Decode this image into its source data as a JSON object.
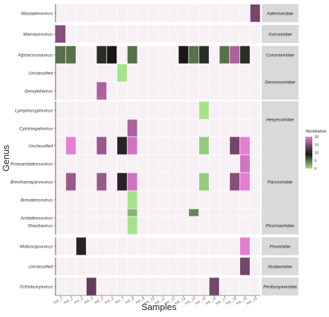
{
  "chart_data": {
    "type": "heatmap",
    "title": "",
    "xlabel": "Samples",
    "ylabel": "Genus",
    "samples": [
      "Ind._1",
      "Ind._2",
      "Ind._3",
      "Ind._4",
      "Ind._5",
      "Ind._6",
      "Ind._7",
      "Ind._8",
      "Ind._9",
      "Ind._10",
      "Ind._11",
      "Ind._12",
      "Ind._13",
      "Ind._14",
      "Ind._15",
      "Ind._16",
      "Ind._17",
      "Ind._18",
      "Ind._19",
      "Ind._20"
    ],
    "facets": [
      {
        "family": "Adenoviridae",
        "genera": [
          "Mastadenovirus"
        ]
      },
      {
        "family": "Astroviridae",
        "genera": [
          "Mamastrovirus"
        ]
      },
      {
        "family": "Coronaviridae",
        "genera": [
          "Alphacoronavirus"
        ]
      },
      {
        "family": "Genomoviridae",
        "genera": [
          "Unclassified",
          "Gemykibivirus"
        ]
      },
      {
        "family": "Herpesviridae",
        "genera": [
          "Lymphocryptovirus",
          "Cytomegalovirus"
        ]
      },
      {
        "family": "Parvoviridae",
        "genera": [
          "Unclassified",
          "Protoambidensovirus",
          "Brevihamaparvovirus",
          "Brevidensovirus",
          "Ambidensovirus"
        ]
      },
      {
        "family": "Picornaviridae",
        "genera": [
          "Shanbavirus"
        ]
      },
      {
        "family": "Poxviridae",
        "genera": [
          "Molluscipoxvirus"
        ]
      },
      {
        "family": "Nodaviridae",
        "genera": [
          "Unclassified"
        ]
      },
      {
        "family": "Peribunyaviridae",
        "genera": [
          "Orthobunyavirus"
        ]
      }
    ],
    "cells": [
      {
        "family": "Adenoviridae",
        "genus": "Mastadenovirus",
        "sample": "Ind._20",
        "value": 14
      },
      {
        "family": "Astroviridae",
        "genus": "Mamastrovirus",
        "sample": "Ind._1",
        "value": 15
      },
      {
        "family": "Coronaviridae",
        "genus": "Alphacoronavirus",
        "sample": "Ind._1",
        "value": 5
      },
      {
        "family": "Coronaviridae",
        "genus": "Alphacoronavirus",
        "sample": "Ind._2",
        "value": 5
      },
      {
        "family": "Coronaviridae",
        "genus": "Alphacoronavirus",
        "sample": "Ind._5",
        "value": 8
      },
      {
        "family": "Coronaviridae",
        "genus": "Alphacoronavirus",
        "sample": "Ind._6",
        "value": 9
      },
      {
        "family": "Coronaviridae",
        "genus": "Alphacoronavirus",
        "sample": "Ind._8",
        "value": 5
      },
      {
        "family": "Coronaviridae",
        "genus": "Alphacoronavirus",
        "sample": "Ind._13",
        "value": 9
      },
      {
        "family": "Coronaviridae",
        "genus": "Alphacoronavirus",
        "sample": "Ind._14",
        "value": 5
      },
      {
        "family": "Coronaviridae",
        "genus": "Alphacoronavirus",
        "sample": "Ind._15",
        "value": 8
      },
      {
        "family": "Coronaviridae",
        "genus": "Alphacoronavirus",
        "sample": "Ind._17",
        "value": 5
      },
      {
        "family": "Coronaviridae",
        "genus": "Alphacoronavirus",
        "sample": "Ind._18",
        "value": 17
      },
      {
        "family": "Coronaviridae",
        "genus": "Alphacoronavirus",
        "sample": "Ind._19",
        "value": 8
      },
      {
        "family": "Genomoviridae",
        "genus": "Unclassified",
        "sample": "Ind._7",
        "value": 0
      },
      {
        "family": "Genomoviridae",
        "genus": "Gemykibivirus",
        "sample": "Ind._5",
        "value": 17
      },
      {
        "family": "Herpesviridae",
        "genus": "Lymphocryptovirus",
        "sample": "Ind._15",
        "value": 0
      },
      {
        "family": "Herpesviridae",
        "genus": "Cytomegalovirus",
        "sample": "Ind._8",
        "value": 17
      },
      {
        "family": "Parvoviridae",
        "genus": "Unclassified",
        "sample": "Ind._2",
        "value": 20
      },
      {
        "family": "Parvoviridae",
        "genus": "Unclassified",
        "sample": "Ind._5",
        "value": 16
      },
      {
        "family": "Parvoviridae",
        "genus": "Unclassified",
        "sample": "Ind._7",
        "value": 10
      },
      {
        "family": "Parvoviridae",
        "genus": "Unclassified",
        "sample": "Ind._8",
        "value": 19
      },
      {
        "family": "Parvoviridae",
        "genus": "Unclassified",
        "sample": "Ind._15",
        "value": 1
      },
      {
        "family": "Parvoviridae",
        "genus": "Unclassified",
        "sample": "Ind._18",
        "value": 14
      },
      {
        "family": "Parvoviridae",
        "genus": "Unclassified",
        "sample": "Ind._19",
        "value": 20
      },
      {
        "family": "Parvoviridae",
        "genus": "Protoambidensovirus",
        "sample": "Ind._19",
        "value": 19
      },
      {
        "family": "Parvoviridae",
        "genus": "Brevihamaparvovirus",
        "sample": "Ind._2",
        "value": 16
      },
      {
        "family": "Parvoviridae",
        "genus": "Brevihamaparvovirus",
        "sample": "Ind._5",
        "value": 16
      },
      {
        "family": "Parvoviridae",
        "genus": "Brevihamaparvovirus",
        "sample": "Ind._7",
        "value": 10
      },
      {
        "family": "Parvoviridae",
        "genus": "Brevihamaparvovirus",
        "sample": "Ind._8",
        "value": 19
      },
      {
        "family": "Parvoviridae",
        "genus": "Brevihamaparvovirus",
        "sample": "Ind._15",
        "value": 1
      },
      {
        "family": "Parvoviridae",
        "genus": "Brevihamaparvovirus",
        "sample": "Ind._18",
        "value": 15
      },
      {
        "family": "Parvoviridae",
        "genus": "Brevihamaparvovirus",
        "sample": "Ind._19",
        "value": 20
      },
      {
        "family": "Parvoviridae",
        "genus": "Brevidensovirus",
        "sample": "Ind._8",
        "value": 0
      },
      {
        "family": "Parvoviridae",
        "genus": "Ambidensovirus",
        "sample": "Ind._8",
        "value": 2
      },
      {
        "family": "Parvoviridae",
        "genus": "Ambidensovirus",
        "sample": "Ind._14",
        "value": 4
      },
      {
        "family": "Picornaviridae",
        "genus": "Shanbavirus",
        "sample": "Ind._8",
        "value": 0
      },
      {
        "family": "Poxviridae",
        "genus": "Molluscipoxvirus",
        "sample": "Ind._3",
        "value": 10
      },
      {
        "family": "Poxviridae",
        "genus": "Molluscipoxvirus",
        "sample": "Ind._19",
        "value": 20
      },
      {
        "family": "Nodaviridae",
        "genus": "Unclassified",
        "sample": "Ind._19",
        "value": 14
      },
      {
        "family": "Peribunyaviridae",
        "genus": "Orthobunyavirus",
        "sample": "Ind._4",
        "value": 13
      },
      {
        "family": "Peribunyaviridae",
        "genus": "Orthobunyavirus",
        "sample": "Ind._16",
        "value": 14
      }
    ],
    "legend": {
      "title": "Abundance",
      "ticks": [
        20,
        15,
        10,
        5,
        0
      ],
      "range": [
        0,
        20
      ],
      "colors": {
        "low": "#a6e28c",
        "dark": "#1a1616",
        "high": "#e17fd0"
      },
      "placement": "right"
    },
    "colors": {
      "empty_cell": "#f7f1f6",
      "strip": "#d9d9d9",
      "grid": "#ffffff"
    }
  }
}
